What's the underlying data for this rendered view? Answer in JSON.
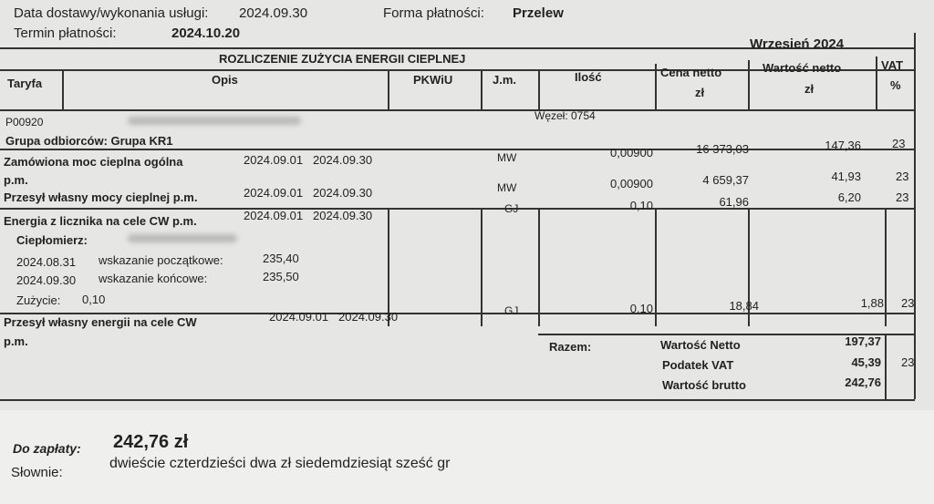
{
  "header": {
    "delivery_label": "Data dostawy/wykonania usługi:",
    "delivery_date": "2024.09.30",
    "payment_form_label": "Forma płatności:",
    "payment_form": "Przelew",
    "due_label": "Termin płatności:",
    "due_date": "2024.10.20"
  },
  "table": {
    "title": "ROZLICZENIE ZUŻYCIA ENERGII CIEPLNEJ",
    "period": "Wrzesień  2024",
    "columns": {
      "taryfa": "Taryfa",
      "opis": "Opis",
      "pkwiu": "PKWiU",
      "jm": "J.m.",
      "ilosc": "Ilość",
      "cena": "Cena netto",
      "cena_unit": "zł",
      "wartosc": "Wartość netto",
      "wartosc_unit": "zł",
      "vat": "VAT",
      "vat_unit": "%"
    },
    "tariff_code": "P00920",
    "node": "Węzeł: 0754",
    "group": "Grupa odbiorców:  Grupa KR1",
    "rows": [
      {
        "opis": "Zamówiona moc cieplna ogólna",
        "opis2": "p.m.",
        "from": "2024.09.01",
        "to": "2024.09.30",
        "jm": "MW",
        "ilosc": "0,00900",
        "cena": "16 373,03",
        "wartosc": "147,36",
        "vat": "23"
      },
      {
        "opis": "Przesył własny mocy cieplnej p.m.",
        "from": "2024.09.01",
        "to": "2024.09.30",
        "jm": "MW",
        "ilosc": "0,00900",
        "cena": "4 659,37",
        "wartosc": "41,93",
        "vat": "23"
      },
      {
        "opis": "Energia z licznika na cele CW p.m.",
        "from": "2024.09.01",
        "to": "2024.09.30",
        "jm": "GJ",
        "ilosc": "0,10",
        "cena": "61,96",
        "wartosc": "6,20",
        "vat": "23"
      },
      {
        "opis": "Przesył własny energii na cele CW",
        "opis2": "p.m.",
        "from": "2024.09.01",
        "to": "2024.09.30",
        "jm": "GJ",
        "ilosc": "0,10",
        "cena": "18,84",
        "wartosc": "1,88",
        "vat": "23"
      }
    ],
    "meter": {
      "label": "Ciepłomierz:",
      "start_date": "2024.08.31",
      "start_label": "wskazanie początkowe:",
      "start_value": "235,40",
      "end_date": "2024.09.30",
      "end_label": "wskazanie końcowe:",
      "end_value": "235,50",
      "usage_label": "Zużycie:",
      "usage_value": "0,10"
    },
    "totals": {
      "label": "Razem:",
      "netto_label": "Wartość Netto",
      "netto": "197,37",
      "vat_label": "Podatek VAT",
      "vat": "45,39",
      "vat_rate": "23",
      "brutto_label": "Wartość brutto",
      "brutto": "242,76"
    }
  },
  "payment": {
    "due_label": "Do zapłaty:",
    "due_amount": "242,76 zł",
    "words_label": "Słownie:",
    "words": "dwieście czterdzieści dwa  zł  siedemdziesiąt sześć  gr"
  }
}
